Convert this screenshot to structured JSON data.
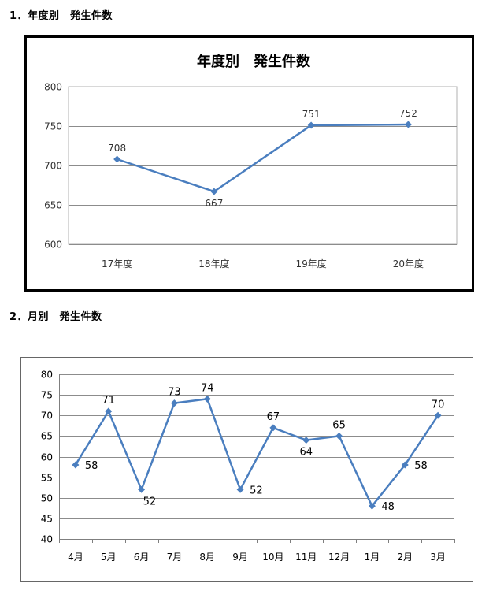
{
  "headings": {
    "annual": "1．年度別　発生件数",
    "monthly": "2．月別　発生件数"
  },
  "colors": {
    "series": "#4a7ebf",
    "grid": "#8c8c8c",
    "plot_border": "#b0b0b0"
  },
  "chart_data": [
    {
      "type": "line",
      "title": "年度別　発生件数",
      "categories": [
        "17年度",
        "18年度",
        "19年度",
        "20年度"
      ],
      "series": [
        {
          "values": [
            708,
            667,
            751,
            752
          ]
        }
      ],
      "data_labels": [
        "708",
        "667",
        "751",
        "752"
      ],
      "ylim": [
        600,
        800
      ],
      "yticks": [
        600,
        650,
        700,
        750,
        800
      ],
      "grid": true,
      "legend": "none"
    },
    {
      "type": "line",
      "title": "",
      "categories": [
        "4月",
        "5月",
        "6月",
        "7月",
        "8月",
        "9月",
        "10月",
        "11月",
        "12月",
        "1月",
        "2月",
        "3月"
      ],
      "series": [
        {
          "values": [
            58,
            71,
            52,
            73,
            74,
            52,
            67,
            64,
            65,
            48,
            58,
            70
          ]
        }
      ],
      "data_labels": [
        "58",
        "71",
        "52",
        "73",
        "74",
        "52",
        "67",
        "64",
        "65",
        "48",
        "58",
        "70"
      ],
      "ylim": [
        40,
        80
      ],
      "yticks": [
        40,
        45,
        50,
        55,
        60,
        65,
        70,
        75,
        80
      ],
      "grid": true,
      "legend": "none"
    }
  ]
}
